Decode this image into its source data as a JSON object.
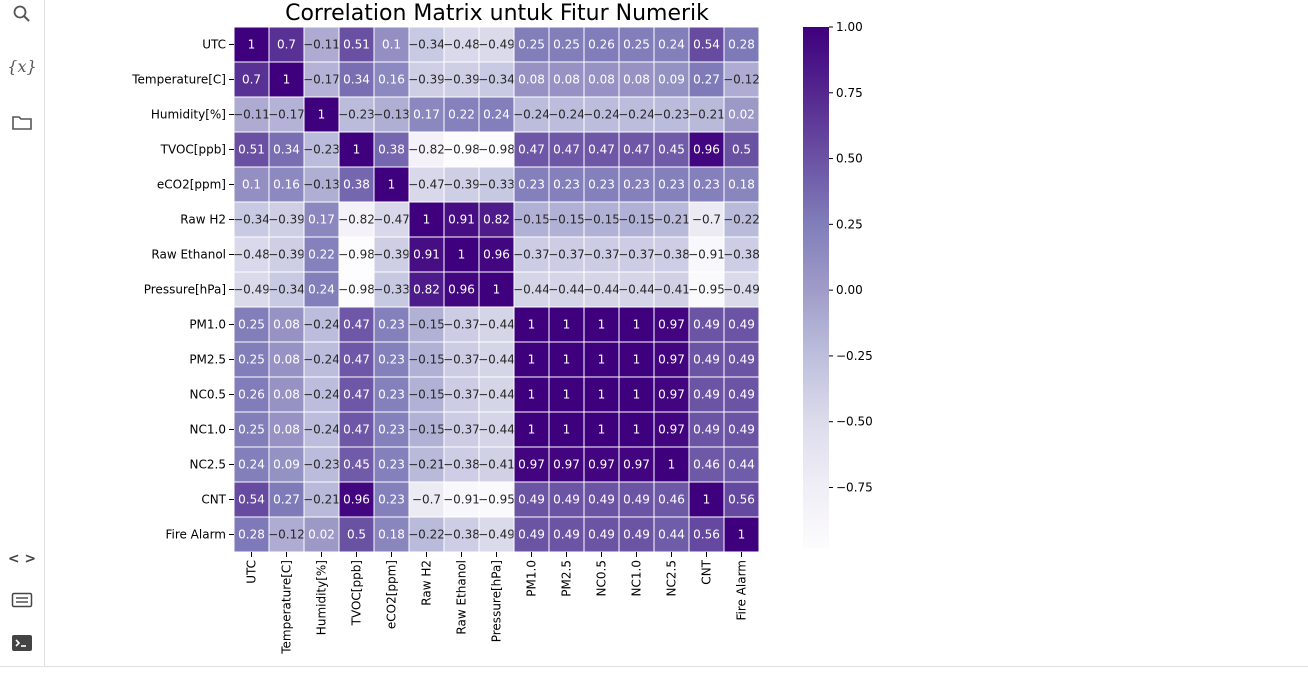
{
  "sidebar": {
    "tools": [
      {
        "name": "search-icon"
      },
      {
        "name": "variables-icon",
        "label": "{x}"
      },
      {
        "name": "folder-icon"
      }
    ],
    "bottom_tools": [
      {
        "name": "code-snippets-icon",
        "label": "< >"
      },
      {
        "name": "command-palette-icon"
      },
      {
        "name": "terminal-icon"
      }
    ]
  },
  "chart_data": {
    "type": "heatmap",
    "title": "Correlation Matrix untuk Fitur Numerik",
    "labels": [
      "UTC",
      "Temperature[C]",
      "Humidity[%]",
      "TVOC[ppb]",
      "eCO2[ppm]",
      "Raw H2",
      "Raw Ethanol",
      "Pressure[hPa]",
      "PM1.0",
      "PM2.5",
      "NC0.5",
      "NC1.0",
      "NC2.5",
      "CNT",
      "Fire Alarm"
    ],
    "matrix": [
      [
        1,
        0.7,
        -0.11,
        0.51,
        0.1,
        -0.34,
        -0.48,
        -0.49,
        0.25,
        0.25,
        0.26,
        0.25,
        0.24,
        0.54,
        0.28
      ],
      [
        0.7,
        1,
        -0.17,
        0.34,
        0.16,
        -0.39,
        -0.39,
        -0.34,
        0.08,
        0.08,
        0.08,
        0.08,
        0.09,
        0.27,
        -0.12
      ],
      [
        -0.11,
        -0.17,
        1,
        -0.23,
        -0.13,
        0.17,
        0.22,
        0.24,
        -0.24,
        -0.24,
        -0.24,
        -0.24,
        -0.23,
        -0.21,
        0.02
      ],
      [
        0.51,
        0.34,
        -0.23,
        1,
        0.38,
        -0.82,
        -0.98,
        -0.98,
        0.47,
        0.47,
        0.47,
        0.47,
        0.45,
        0.96,
        0.5
      ],
      [
        0.1,
        0.16,
        -0.13,
        0.38,
        1,
        -0.47,
        -0.39,
        -0.33,
        0.23,
        0.23,
        0.23,
        0.23,
        0.23,
        0.23,
        0.18
      ],
      [
        -0.34,
        -0.39,
        0.17,
        -0.82,
        -0.47,
        1,
        0.91,
        0.82,
        -0.15,
        -0.15,
        -0.15,
        -0.15,
        -0.21,
        -0.7,
        -0.22
      ],
      [
        -0.48,
        -0.39,
        0.22,
        -0.98,
        -0.39,
        0.91,
        1,
        0.96,
        -0.37,
        -0.37,
        -0.37,
        -0.37,
        -0.38,
        -0.91,
        -0.38
      ],
      [
        -0.49,
        -0.34,
        0.24,
        -0.98,
        -0.33,
        0.82,
        0.96,
        1,
        -0.44,
        -0.44,
        -0.44,
        -0.44,
        -0.41,
        -0.95,
        -0.49
      ],
      [
        0.25,
        0.08,
        -0.24,
        0.47,
        0.23,
        -0.15,
        -0.37,
        -0.44,
        1,
        1,
        1,
        1,
        0.97,
        0.49,
        0.49
      ],
      [
        0.25,
        0.08,
        -0.24,
        0.47,
        0.23,
        -0.15,
        -0.37,
        -0.44,
        1,
        1,
        1,
        1,
        0.97,
        0.49,
        0.49
      ],
      [
        0.26,
        0.08,
        -0.24,
        0.47,
        0.23,
        -0.15,
        -0.37,
        -0.44,
        1,
        1,
        1,
        1,
        0.97,
        0.49,
        0.49
      ],
      [
        0.25,
        0.08,
        -0.24,
        0.47,
        0.23,
        -0.15,
        -0.37,
        -0.44,
        1,
        1,
        1,
        1,
        0.97,
        0.49,
        0.49
      ],
      [
        0.24,
        0.09,
        -0.23,
        0.45,
        0.23,
        -0.21,
        -0.38,
        -0.41,
        0.97,
        0.97,
        0.97,
        0.97,
        1,
        0.46,
        0.44
      ],
      [
        0.54,
        0.27,
        -0.21,
        0.96,
        0.23,
        -0.7,
        -0.91,
        -0.95,
        0.49,
        0.49,
        0.49,
        0.49,
        0.46,
        1,
        0.56
      ],
      [
        0.28,
        -0.12,
        0.02,
        0.5,
        0.18,
        -0.22,
        -0.38,
        -0.49,
        0.49,
        0.49,
        0.49,
        0.49,
        0.44,
        0.56,
        1
      ]
    ],
    "colorbar": {
      "ticks": [
        1.0,
        0.75,
        0.5,
        0.25,
        0.0,
        -0.25,
        -0.5,
        -0.75
      ],
      "tick_labels": [
        "1.00",
        "0.75",
        "0.50",
        "0.25",
        "0.00",
        "−0.25",
        "−0.50",
        "−0.75"
      ],
      "range": [
        -0.98,
        1.0
      ],
      "colormap": "Purples",
      "color_low": "#fcfbfd",
      "color_high": "#3f007d"
    },
    "annotations": true,
    "cell_border_color": "#ffffff"
  }
}
